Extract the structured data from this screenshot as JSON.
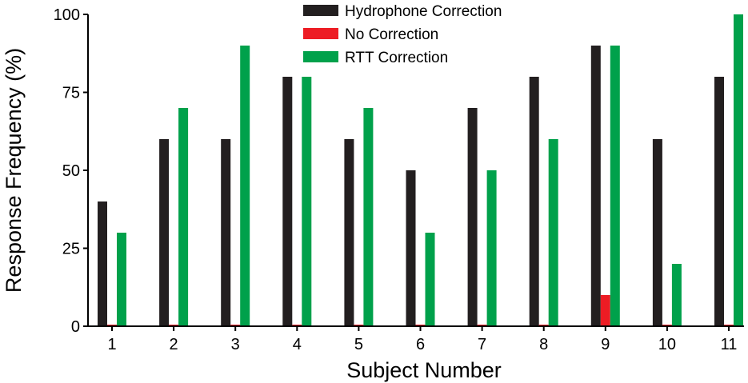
{
  "chart_data": {
    "type": "bar",
    "title": "",
    "xlabel": "Subject Number",
    "ylabel": "Response Frequency (%)",
    "ylim": [
      0,
      100
    ],
    "yticks": [
      0,
      25,
      50,
      75,
      100
    ],
    "categories": [
      "1",
      "2",
      "3",
      "4",
      "5",
      "6",
      "7",
      "8",
      "9",
      "10",
      "11"
    ],
    "series": [
      {
        "name": "Hydrophone Correction",
        "color": "#231f20",
        "values": [
          40,
          60,
          60,
          80,
          60,
          50,
          70,
          80,
          90,
          60,
          80
        ]
      },
      {
        "name": "No Correction",
        "color": "#ed1c24",
        "values": [
          0,
          0,
          0,
          0,
          0,
          0,
          0,
          0,
          10,
          0,
          0
        ]
      },
      {
        "name": "RTT Correction",
        "color": "#00a14b",
        "values": [
          30,
          70,
          90,
          80,
          70,
          30,
          50,
          60,
          90,
          20,
          100
        ]
      }
    ],
    "legend_position": "top-center",
    "grid": false
  }
}
